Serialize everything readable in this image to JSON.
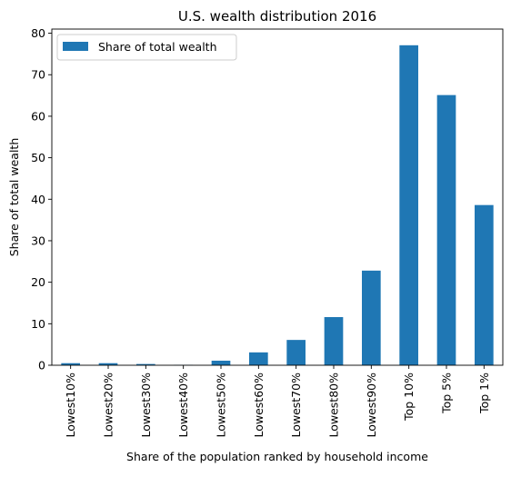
{
  "chart_data": {
    "type": "bar",
    "title": "U.S. wealth distribution 2016",
    "xlabel": "Share of the population ranked by household income",
    "ylabel": "Share of total wealth",
    "categories": [
      "Lowest10%",
      "Lowest20%",
      "Lowest30%",
      "Lowest40%",
      "Lowest50%",
      "Lowest60%",
      "Lowest70%",
      "Lowest80%",
      "Lowest90%",
      "Top 10%",
      "Top 5%",
      "Top 1%"
    ],
    "series": [
      {
        "name": "Share of total wealth",
        "color": "#1f77b4",
        "values": [
          0.5,
          0.5,
          0.3,
          0.1,
          1.1,
          3.1,
          6.1,
          11.6,
          22.8,
          77.1,
          65.1,
          38.6
        ]
      }
    ],
    "ylim": [
      0,
      81
    ],
    "yticks": [
      0,
      10,
      20,
      30,
      40,
      50,
      60,
      70,
      80
    ],
    "legend": "top-left",
    "grid": false
  }
}
